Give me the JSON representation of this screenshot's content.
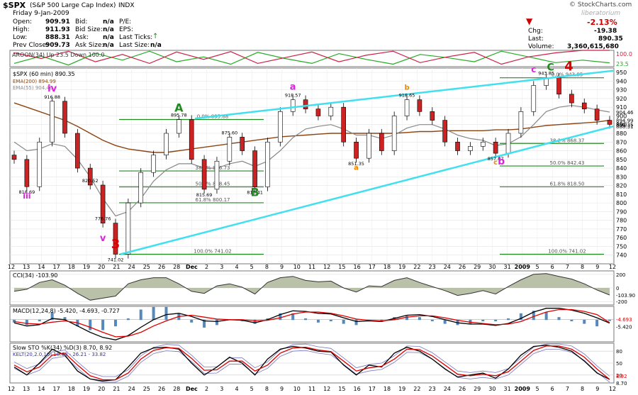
{
  "header": {
    "symbol": "$SPX",
    "name": "(S&P 500 Large Cap Index)",
    "exchange": "INDX",
    "date": "Friday  9-Jan-2009",
    "copyright": "© StockCharts.com",
    "watermark": "liberatorium",
    "open_label": "Open:",
    "open": "909.91",
    "high_label": "High:",
    "high": "911.93",
    "low_label": "Low:",
    "low": "888.31",
    "prev_label": "Prev Close:",
    "prev": "909.73",
    "bid_label": "Bid:",
    "bid": "n/a",
    "bidsize_label": "Bid Size:",
    "bidsize": "n/a",
    "ask_label": "Ask:",
    "ask": "n/a",
    "asksize_label": "Ask Size:",
    "asksize": "n/a",
    "pe_label": "P/E:",
    "eps_label": "EPS:",
    "lastticks_label": "Last Ticks:",
    "lastsize_label": "Last Size:",
    "pct_change": "-2.13%",
    "chg_label": "Chg:",
    "chg": "-19.38",
    "last_label": "Last:",
    "last": "890.35",
    "volume_label": "Volume:",
    "volume": "3,360,615,680"
  },
  "chart_data": [
    {
      "type": "line",
      "title": "AROON(34) Up 23.5 Down 100.0",
      "ylim": [
        0,
        100
      ],
      "right_labels": [
        "100.0",
        "23.5"
      ],
      "series": [
        {
          "name": "Up",
          "color": "#22aa22",
          "values": [
            20,
            65,
            10,
            82,
            40,
            95,
            30,
            60,
            15,
            88,
            50,
            20,
            80,
            45,
            15,
            75,
            55,
            30,
            95,
            60,
            25,
            40,
            23.5
          ]
        },
        {
          "name": "Down",
          "color": "#cc2244",
          "values": [
            85,
            50,
            95,
            30,
            75,
            20,
            90,
            45,
            92,
            20,
            55,
            90,
            30,
            70,
            95,
            25,
            60,
            88,
            15,
            60,
            85,
            100,
            100
          ]
        }
      ]
    },
    {
      "type": "candlestick",
      "title": "$SPX (60 min) 890.35",
      "legend": [
        {
          "text": "EMA(200) 894.99",
          "color": "#8b4513"
        },
        {
          "text": "EMA(55) 904.46",
          "color": "#888888"
        }
      ],
      "ylim": [
        730,
        955
      ],
      "y_ticks": [
        740,
        750,
        760,
        770,
        780,
        790,
        800,
        810,
        820,
        830,
        840,
        850,
        860,
        870,
        880,
        890,
        900,
        910,
        920,
        930,
        940,
        950
      ],
      "x_ticks": [
        "12",
        "13",
        "14",
        "17",
        "18",
        "19",
        "20",
        "21",
        "24",
        "25",
        "26",
        "28",
        "Dec",
        "2",
        "3",
        "4",
        "5",
        "8",
        "9",
        "10",
        "11",
        "12",
        "15",
        "16",
        "17",
        "18",
        "19",
        "22",
        "23",
        "24",
        "26",
        "29",
        "30",
        "31",
        "2009",
        "5",
        "6",
        "7",
        "8",
        "9",
        "12"
      ],
      "closes": [
        850,
        818.69,
        870,
        916.88,
        880,
        840,
        820.52,
        776.76,
        741.02,
        800,
        835,
        855,
        880,
        895.78,
        850,
        815.69,
        848,
        875.6,
        860,
        818.41,
        870,
        905,
        918.57,
        908,
        900,
        910,
        870,
        851.35,
        880,
        860,
        900,
        918.65,
        905,
        895,
        870,
        860,
        865,
        870,
        857.07,
        880,
        905,
        935,
        943.85,
        925,
        915,
        908,
        895,
        890.35
      ],
      "ema200": [
        915,
        910,
        905,
        900,
        895,
        888,
        880,
        872,
        866,
        862,
        860,
        858,
        858,
        860,
        862,
        864,
        866,
        868,
        870,
        872,
        874,
        876,
        877,
        878,
        879,
        880,
        880,
        880,
        880,
        880,
        880,
        881,
        882,
        882,
        883,
        883,
        883,
        883,
        884,
        884,
        885,
        887,
        889,
        890,
        891,
        892,
        893,
        894.99
      ],
      "ema55": [
        870,
        860,
        862,
        868,
        865,
        850,
        830,
        805,
        785,
        790,
        805,
        825,
        838,
        845,
        845,
        840,
        840,
        845,
        848,
        842,
        848,
        860,
        875,
        885,
        888,
        890,
        885,
        878,
        878,
        874,
        878,
        886,
        890,
        890,
        885,
        878,
        874,
        872,
        866,
        868,
        876,
        890,
        905,
        910,
        912,
        910,
        907,
        904.46
      ],
      "fib_levels": [
        {
          "label": "0.0% 895.88",
          "value": 895.88
        },
        {
          "label": "38.2% 836.73",
          "value": 836.73
        },
        {
          "label": "50.0% 818.45",
          "value": 818.45
        },
        {
          "label": "61.8% 800.17",
          "value": 800.17
        },
        {
          "label": "100.0% 741.02",
          "value": 741.02
        },
        {
          "label": "0.0% 943.85",
          "value": 943.85
        },
        {
          "label": "38.2% 868.37",
          "value": 868.37
        },
        {
          "label": "50.0% 842.43",
          "value": 842.43
        },
        {
          "label": "61.8% 818.50",
          "value": 818.5
        },
        {
          "label": "100.0% 741.02",
          "value": 741.02
        }
      ],
      "annotations": [
        {
          "text": "iv",
          "color": "#dd22dd"
        },
        {
          "text": "iii",
          "color": "#dd22dd"
        },
        {
          "text": "v",
          "color": "#dd22dd"
        },
        {
          "text": "3",
          "color": "#dd0000"
        },
        {
          "text": "A",
          "color": "#228822"
        },
        {
          "text": "B",
          "color": "#228822"
        },
        {
          "text": "a",
          "color": "#dd22dd"
        },
        {
          "text": "a",
          "color": "#ee8800"
        },
        {
          "text": "b",
          "color": "#ee8800"
        },
        {
          "text": "c",
          "color": "#ee8800"
        },
        {
          "text": "b",
          "color": "#dd22dd"
        },
        {
          "text": "c",
          "color": "#dd22dd"
        },
        {
          "text": "C",
          "color": "#228822"
        },
        {
          "text": "4",
          "color": "#dd0000"
        }
      ],
      "price_labels": [
        "818.69",
        "916.88",
        "820.52",
        "776.76",
        "741.02",
        "895.78",
        "815.69",
        "875.60",
        "818.41",
        "918.57",
        "851.35",
        "918.65",
        "857.07",
        "943.85"
      ],
      "right_labels": [
        "904.46",
        "894.99",
        "890.35",
        "888.31"
      ]
    },
    {
      "type": "line",
      "title": "CCI(34) -103.90",
      "ylim": [
        -250,
        250
      ],
      "y_ticks": [
        200,
        0,
        -200
      ],
      "right_label": "-103.90",
      "values": [
        -50,
        -20,
        80,
        120,
        40,
        -80,
        -180,
        -150,
        -120,
        60,
        120,
        150,
        150,
        60,
        -50,
        -80,
        30,
        60,
        10,
        -90,
        80,
        150,
        170,
        110,
        90,
        100,
        0,
        -60,
        30,
        20,
        110,
        150,
        80,
        20,
        -40,
        -110,
        -80,
        -40,
        -90,
        20,
        120,
        200,
        210,
        170,
        130,
        60,
        -30,
        -103.9
      ]
    },
    {
      "type": "line",
      "title": "MACD(12,24,8) -5.420, -4.693, -0.727",
      "right_labels": [
        "-4.693",
        "-5.420"
      ],
      "series": [
        {
          "name": "MACD",
          "color": "#000000",
          "values": [
            -5,
            -10,
            -8,
            2,
            0,
            -10,
            -20,
            -28,
            -32,
            -25,
            -12,
            0,
            8,
            10,
            5,
            -2,
            -3,
            0,
            -1,
            -5,
            0,
            8,
            14,
            13,
            10,
            9,
            3,
            -3,
            -2,
            -3,
            2,
            7,
            8,
            5,
            0,
            -5,
            -7,
            -7,
            -9,
            -6,
            2,
            12,
            18,
            18,
            15,
            10,
            3,
            -5.42
          ]
        },
        {
          "name": "Signal",
          "color": "#dd0000",
          "values": [
            -3,
            -6,
            -7,
            -4,
            -2,
            -5,
            -12,
            -20,
            -27,
            -26,
            -20,
            -10,
            -2,
            5,
            7,
            4,
            1,
            0,
            0,
            -2,
            -1,
            3,
            9,
            12,
            12,
            10,
            6,
            1,
            -1,
            -2,
            0,
            4,
            6,
            6,
            3,
            -1,
            -4,
            -6,
            -8,
            -7,
            -3,
            5,
            12,
            16,
            16,
            13,
            8,
            -4.693
          ]
        }
      ]
    },
    {
      "type": "line",
      "title": "Slow STO %K(34) %D(3) 8.70, 8.92",
      "subtitle": "KELT(20,2.0,10) 18.60 - 26.21 - 33.82",
      "ylim": [
        0,
        100
      ],
      "y_ticks": [
        80,
        50,
        20
      ],
      "right_labels": [
        "8.92",
        "8.70"
      ],
      "series": [
        {
          "name": "%K",
          "color": "#000000",
          "values": [
            40,
            20,
            50,
            85,
            70,
            30,
            10,
            5,
            8,
            40,
            75,
            88,
            90,
            85,
            50,
            20,
            40,
            65,
            50,
            20,
            60,
            85,
            92,
            88,
            80,
            78,
            45,
            20,
            45,
            40,
            75,
            90,
            80,
            60,
            35,
            15,
            20,
            25,
            12,
            35,
            70,
            92,
            95,
            90,
            80,
            55,
            25,
            8.7
          ]
        },
        {
          "name": "%D",
          "color": "#dd0000",
          "values": [
            45,
            28,
            40,
            70,
            75,
            45,
            18,
            8,
            8,
            25,
            60,
            82,
            89,
            87,
            62,
            32,
            33,
            55,
            55,
            30,
            45,
            75,
            88,
            90,
            83,
            79,
            55,
            30,
            38,
            42,
            60,
            85,
            84,
            68,
            45,
            22,
            18,
            22,
            18,
            28,
            55,
            82,
            93,
            93,
            85,
            65,
            35,
            8.92
          ]
        }
      ]
    }
  ],
  "colors": {
    "up_candle": "#ffffff",
    "down_candle": "#cc2222",
    "trend_line": "#40e0f0",
    "fib_line": "#228822",
    "grid": "#cccccc"
  }
}
